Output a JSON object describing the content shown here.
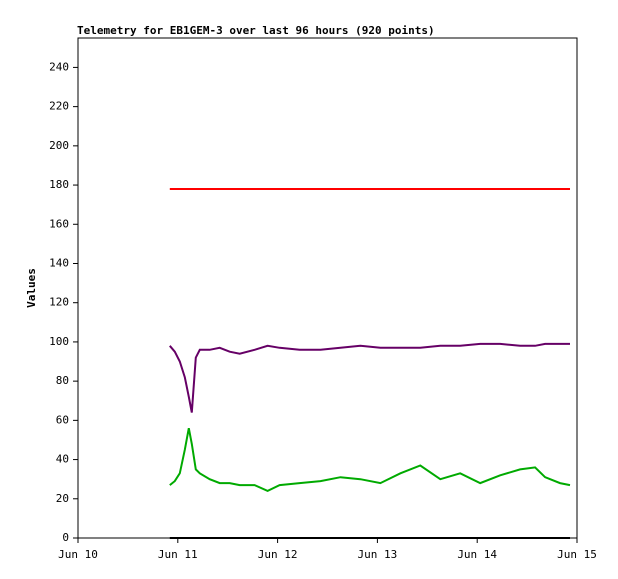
{
  "chart_data": {
    "type": "line",
    "title": "Telemetry for EB1GEM-3 over last 96 hours (920 points)",
    "y_label": "Values",
    "x": [
      10.92,
      10.97,
      11.02,
      11.07,
      11.11,
      11.14,
      11.18,
      11.22,
      11.32,
      11.42,
      11.52,
      11.62,
      11.77,
      11.9,
      12.02,
      12.22,
      12.43,
      12.63,
      12.83,
      13.03,
      13.23,
      13.43,
      13.63,
      13.83,
      14.03,
      14.23,
      14.43,
      14.58,
      14.68,
      14.83,
      14.93
    ],
    "series": [
      {
        "color": "#ff0000",
        "values": [
          178,
          178,
          178,
          178,
          178,
          178,
          178,
          178,
          178,
          178,
          178,
          178,
          178,
          178,
          178,
          178,
          178,
          178,
          178,
          178,
          178,
          178,
          178,
          178,
          178,
          178,
          178,
          178,
          178,
          178,
          178
        ]
      },
      {
        "color": "#660066",
        "values": [
          98,
          95,
          90,
          82,
          72,
          64,
          92,
          96,
          96,
          97,
          95,
          94,
          96,
          98,
          97,
          96,
          96,
          97,
          98,
          97,
          97,
          97,
          98,
          98,
          99,
          99,
          98,
          98,
          99,
          99,
          99
        ]
      },
      {
        "color": "#00aa00",
        "values": [
          27,
          29,
          33,
          45,
          56,
          48,
          35,
          33,
          30,
          28,
          28,
          27,
          27,
          24,
          27,
          28,
          29,
          31,
          30,
          28,
          33,
          37,
          30,
          33,
          28,
          32,
          35,
          36,
          31,
          28,
          27
        ]
      },
      {
        "color": "#000000",
        "values": [
          0,
          0,
          0,
          0,
          0,
          0,
          0,
          0,
          0,
          0,
          0,
          0,
          0,
          0,
          0,
          0,
          0,
          0,
          0,
          0,
          0,
          0,
          0,
          0,
          0,
          0,
          0,
          0,
          0,
          0,
          0
        ]
      }
    ],
    "xlim": [
      10,
      15
    ],
    "xticks": [
      {
        "value": 10,
        "label": "Jun 10"
      },
      {
        "value": 11,
        "label": "Jun 11"
      },
      {
        "value": 12,
        "label": "Jun 12"
      },
      {
        "value": 13,
        "label": "Jun 13"
      },
      {
        "value": 14,
        "label": "Jun 14"
      },
      {
        "value": 15,
        "label": "Jun 15"
      }
    ],
    "ylim": [
      0,
      255
    ],
    "yticks": [
      0,
      20,
      40,
      60,
      80,
      100,
      120,
      140,
      160,
      180,
      200,
      220,
      240
    ]
  }
}
